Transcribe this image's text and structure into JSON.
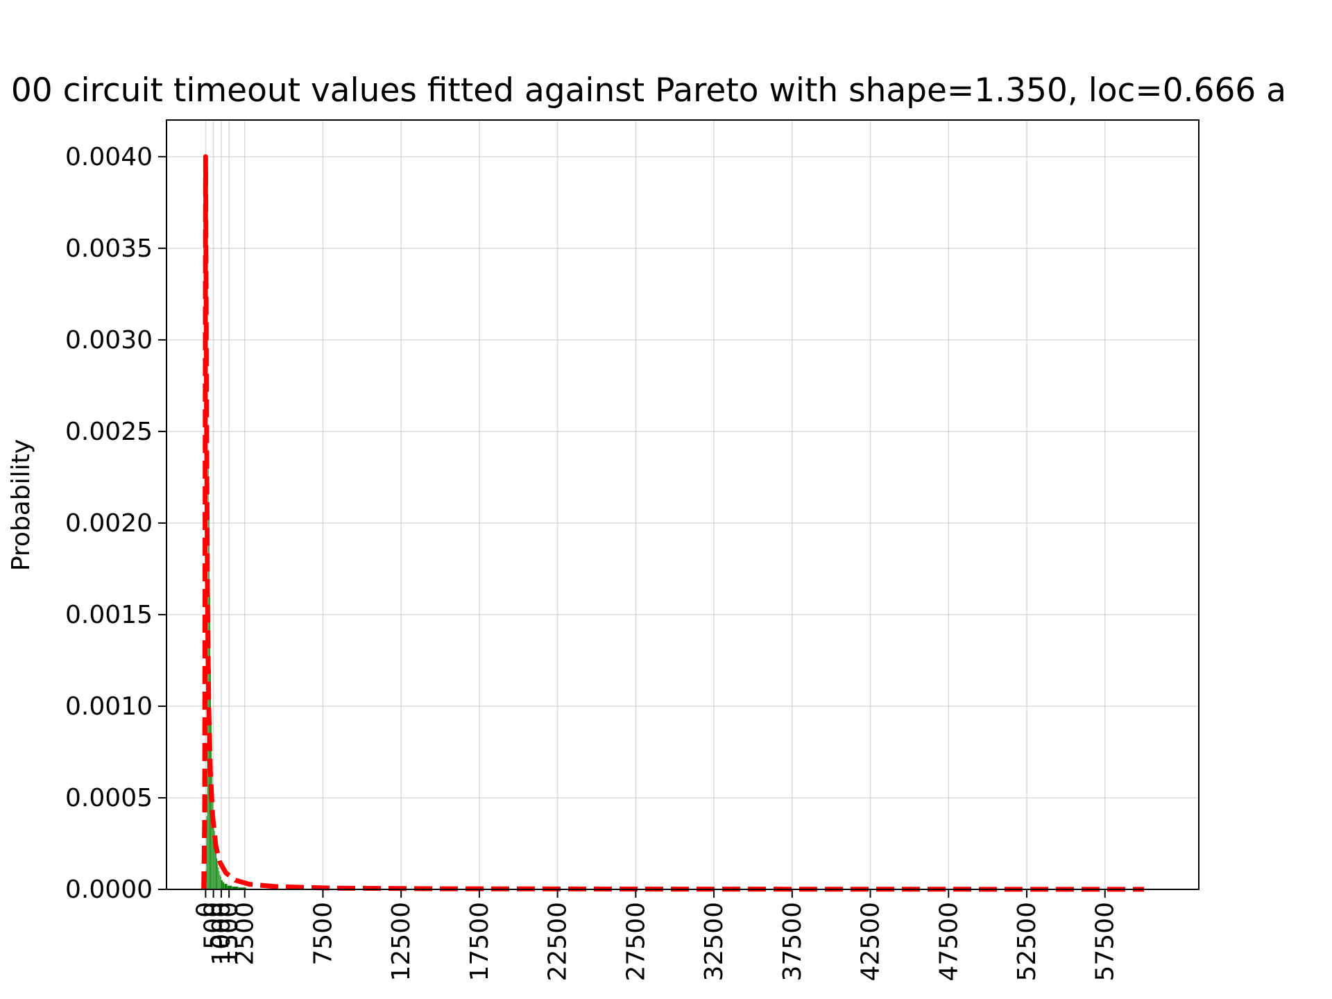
{
  "chart_data": {
    "type": "bar",
    "title": "00 circuit timeout values fitted against Pareto with shape=1.350, loc=0.666 a",
    "xlabel": "",
    "ylabel": "Probability",
    "xlim": [
      -2500,
      63500
    ],
    "ylim": [
      0,
      0.0042
    ],
    "grid": true,
    "x_ticks": [
      {
        "value": 0,
        "label": "0"
      },
      {
        "value": 500,
        "label": "500"
      },
      {
        "value": 1000,
        "label": "1000"
      },
      {
        "value": 1500,
        "label": "1500"
      },
      {
        "value": 2500,
        "label": "2500"
      },
      {
        "value": 7500,
        "label": "7500"
      },
      {
        "value": 12500,
        "label": "12500"
      },
      {
        "value": 17500,
        "label": "17500"
      },
      {
        "value": 22500,
        "label": "22500"
      },
      {
        "value": 27500,
        "label": "27500"
      },
      {
        "value": 32500,
        "label": "32500"
      },
      {
        "value": 37500,
        "label": "37500"
      },
      {
        "value": 42500,
        "label": "42500"
      },
      {
        "value": 47500,
        "label": "47500"
      },
      {
        "value": 52500,
        "label": "52500"
      },
      {
        "value": 57500,
        "label": "57500"
      }
    ],
    "y_ticks": [
      {
        "value": 0.0,
        "label": "0.0000"
      },
      {
        "value": 0.0005,
        "label": "0.0005"
      },
      {
        "value": 0.001,
        "label": "0.0010"
      },
      {
        "value": 0.0015,
        "label": "0.0015"
      },
      {
        "value": 0.002,
        "label": "0.0020"
      },
      {
        "value": 0.0025,
        "label": "0.0025"
      },
      {
        "value": 0.003,
        "label": "0.0030"
      },
      {
        "value": 0.0035,
        "label": "0.0035"
      },
      {
        "value": 0.004,
        "label": "0.0040"
      }
    ],
    "histogram": {
      "color": "#008000",
      "bins": [
        {
          "x0": 0,
          "x1": 50,
          "y": 0.0001
        },
        {
          "x0": 50,
          "x1": 100,
          "y": 0.0004
        },
        {
          "x0": 100,
          "x1": 150,
          "y": 0.0016
        },
        {
          "x0": 150,
          "x1": 200,
          "y": 0.0024
        },
        {
          "x0": 200,
          "x1": 250,
          "y": 0.0021
        },
        {
          "x0": 250,
          "x1": 300,
          "y": 0.0016
        },
        {
          "x0": 300,
          "x1": 350,
          "y": 0.0012
        },
        {
          "x0": 350,
          "x1": 400,
          "y": 0.0009
        },
        {
          "x0": 400,
          "x1": 450,
          "y": 0.00065
        },
        {
          "x0": 450,
          "x1": 500,
          "y": 0.0005
        },
        {
          "x0": 500,
          "x1": 550,
          "y": 0.0004
        },
        {
          "x0": 550,
          "x1": 600,
          "y": 0.00032
        },
        {
          "x0": 600,
          "x1": 650,
          "y": 0.00026
        },
        {
          "x0": 650,
          "x1": 700,
          "y": 0.00021
        },
        {
          "x0": 700,
          "x1": 750,
          "y": 0.00017
        },
        {
          "x0": 750,
          "x1": 800,
          "y": 0.00014
        },
        {
          "x0": 800,
          "x1": 850,
          "y": 0.00012
        },
        {
          "x0": 850,
          "x1": 900,
          "y": 0.0001
        },
        {
          "x0": 900,
          "x1": 950,
          "y": 8e-05
        },
        {
          "x0": 950,
          "x1": 1000,
          "y": 7e-05
        },
        {
          "x0": 1000,
          "x1": 1100,
          "y": 5e-05
        },
        {
          "x0": 1100,
          "x1": 1200,
          "y": 4e-05
        },
        {
          "x0": 1200,
          "x1": 1400,
          "y": 3e-05
        },
        {
          "x0": 1400,
          "x1": 1700,
          "y": 2e-05
        },
        {
          "x0": 1700,
          "x1": 2100,
          "y": 1.5e-05
        },
        {
          "x0": 2100,
          "x1": 2600,
          "y": 1e-05
        }
      ]
    },
    "fit_curve": {
      "color": "#ff0000",
      "style": "dashed",
      "points": [
        [
          -120,
          0.0
        ],
        [
          -60,
          0.0004
        ],
        [
          0,
          0.004
        ],
        [
          60,
          0.0026
        ],
        [
          120,
          0.0016
        ],
        [
          200,
          0.001
        ],
        [
          300,
          0.00065
        ],
        [
          450,
          0.0004
        ],
        [
          650,
          0.00024
        ],
        [
          900,
          0.00015
        ],
        [
          1300,
          9e-05
        ],
        [
          1900,
          5e-05
        ],
        [
          2800,
          2.8e-05
        ],
        [
          4500,
          1.5e-05
        ],
        [
          8000,
          7e-06
        ],
        [
          15000,
          3.5e-06
        ],
        [
          30000,
          1.5e-06
        ],
        [
          45000,
          8e-07
        ],
        [
          60000,
          5e-07
        ]
      ]
    }
  }
}
